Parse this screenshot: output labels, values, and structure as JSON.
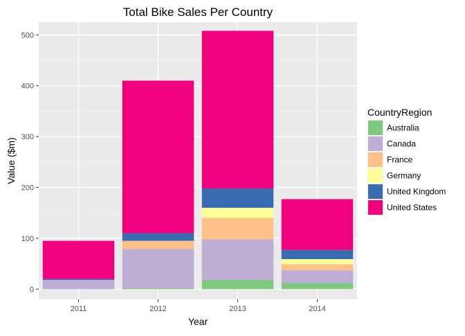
{
  "chart_data": {
    "type": "bar",
    "stacked": true,
    "title": "Total Bike Sales Per Country",
    "xlabel": "Year",
    "ylabel": "Value ($m)",
    "categories": [
      "2011",
      "2012",
      "2013",
      "2014"
    ],
    "ylim": [
      -20,
      525
    ],
    "yticks": [
      0,
      100,
      200,
      300,
      400,
      500
    ],
    "grid": true,
    "legend": {
      "title": "CountryRegion",
      "placement": "right"
    },
    "series": [
      {
        "name": "Australia",
        "color": "#7FC97F",
        "values": [
          0,
          2,
          18,
          12
        ]
      },
      {
        "name": "Canada",
        "color": "#BEAED4",
        "values": [
          18,
          77,
          80,
          25
        ]
      },
      {
        "name": "France",
        "color": "#FDC086",
        "values": [
          0,
          16,
          42,
          12
        ]
      },
      {
        "name": "Germany",
        "color": "#FFFF99",
        "values": [
          0,
          0,
          20,
          10
        ]
      },
      {
        "name": "United Kingdom",
        "color": "#386CB0",
        "values": [
          2,
          15,
          38,
          18
        ]
      },
      {
        "name": "United States",
        "color": "#F0027F",
        "values": [
          75,
          300,
          310,
          100
        ]
      }
    ]
  }
}
